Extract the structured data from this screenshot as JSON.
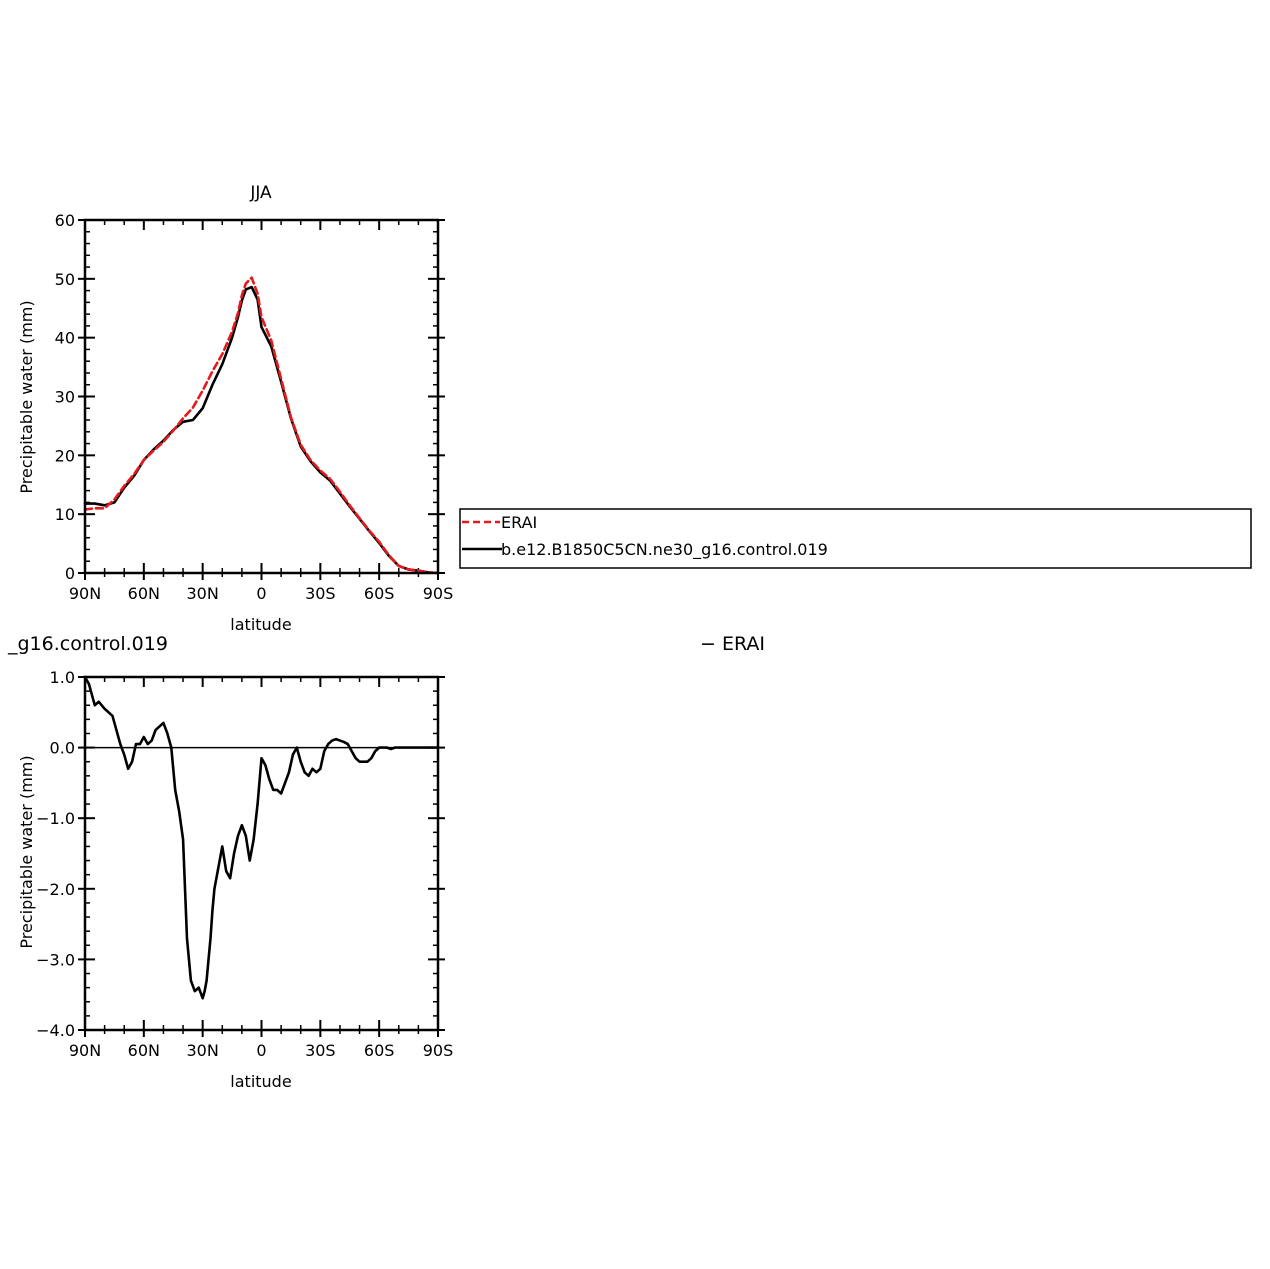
{
  "chart_data": [
    {
      "type": "line",
      "title": "JJA",
      "xlabel": "latitude",
      "ylabel": "Precipitable water (mm)",
      "xlim": [
        90,
        -90
      ],
      "ylim": [
        0,
        60
      ],
      "x_ticks": [
        90,
        60,
        30,
        0,
        -30,
        -60,
        -90
      ],
      "x_tick_labels": [
        "90N",
        "60N",
        "30N",
        "0",
        "30S",
        "60S",
        "90S"
      ],
      "y_ticks": [
        0,
        10,
        20,
        30,
        40,
        50,
        60
      ],
      "y_tick_labels": [
        "0",
        "10",
        "20",
        "30",
        "40",
        "50",
        "60"
      ],
      "legend": {
        "placement": "right",
        "entries": [
          {
            "label": "ERAI",
            "color": "#e41a1c",
            "style": "dashed"
          },
          {
            "label": "b.e12.B1850C5CN.ne30_g16.control.019",
            "color": "#000000",
            "style": "solid"
          }
        ]
      },
      "series": [
        {
          "name": "ERAI",
          "color": "#e41a1c",
          "style": "dashed",
          "x": [
            90,
            85,
            80,
            75,
            70,
            65,
            60,
            55,
            50,
            45,
            40,
            35,
            30,
            25,
            20,
            15,
            12,
            10,
            8,
            5,
            2,
            0,
            -5,
            -10,
            -15,
            -20,
            -25,
            -30,
            -35,
            -40,
            -45,
            -50,
            -55,
            -60,
            -65,
            -70,
            -75,
            -80,
            -85,
            -90
          ],
          "y": [
            10.8,
            11.0,
            11.0,
            12.5,
            14.8,
            16.8,
            19.2,
            20.8,
            22.3,
            24.2,
            26.3,
            28.1,
            31.0,
            34.3,
            37.2,
            41.0,
            44.2,
            47.2,
            49.2,
            50.2,
            47.5,
            43.5,
            39.5,
            33.0,
            26.5,
            21.8,
            19.2,
            17.4,
            16.0,
            13.8,
            11.5,
            9.3,
            7.2,
            5.3,
            3.0,
            1.2,
            0.6,
            0.4,
            0.1,
            0.0
          ]
        },
        {
          "name": "b.e12.B1850C5CN.ne30_g16.control.019",
          "color": "#000000",
          "style": "solid",
          "x": [
            90,
            85,
            80,
            75,
            70,
            65,
            60,
            55,
            50,
            45,
            40,
            35,
            30,
            25,
            20,
            15,
            12,
            10,
            8,
            5,
            2,
            0,
            -5,
            -10,
            -15,
            -20,
            -25,
            -30,
            -35,
            -40,
            -45,
            -50,
            -55,
            -60,
            -65,
            -70,
            -75,
            -80,
            -85,
            -90
          ],
          "y": [
            11.8,
            11.8,
            11.5,
            12.0,
            14.5,
            16.5,
            19.2,
            21.0,
            22.5,
            24.3,
            25.7,
            26.0,
            28.0,
            32.0,
            35.5,
            40.0,
            43.5,
            46.3,
            48.2,
            48.6,
            46.5,
            41.8,
            38.5,
            32.5,
            26.3,
            21.5,
            19.0,
            17.1,
            15.7,
            13.5,
            11.3,
            9.2,
            7.1,
            5.1,
            2.9,
            1.2,
            0.6,
            0.4,
            0.1,
            0.0
          ]
        }
      ]
    },
    {
      "type": "line",
      "title": "_g16.control.019          −  ERAI",
      "title_left": "_g16.control.019",
      "title_right": "−  ERAI",
      "xlabel": "latitude",
      "ylabel": "Precipitable water (mm)",
      "xlim": [
        90,
        -90
      ],
      "ylim": [
        -4,
        1
      ],
      "x_ticks": [
        90,
        60,
        30,
        0,
        -30,
        -60,
        -90
      ],
      "x_tick_labels": [
        "90N",
        "60N",
        "30N",
        "0",
        "30S",
        "60S",
        "90S"
      ],
      "y_ticks": [
        -4,
        -3,
        -2,
        -1,
        0,
        1
      ],
      "y_tick_labels": [
        "−4.0",
        "−3.0",
        "−2.0",
        "−1.0",
        "0.0",
        "1.0"
      ],
      "series": [
        {
          "color": "#000000",
          "style": "solid",
          "x": [
            90,
            88,
            85,
            83,
            80,
            78,
            76,
            74,
            72,
            70,
            68,
            66,
            64,
            62,
            60,
            58,
            56,
            54,
            52,
            50,
            48,
            46,
            44,
            42,
            40,
            38,
            36,
            34,
            32,
            30,
            29,
            28,
            27,
            26,
            25,
            24,
            22,
            20,
            18,
            16,
            14,
            12,
            10,
            8,
            6,
            4,
            2,
            0,
            -2,
            -4,
            -6,
            -8,
            -10,
            -12,
            -14,
            -16,
            -18,
            -20,
            -22,
            -24,
            -26,
            -28,
            -30,
            -32,
            -34,
            -36,
            -38,
            -40,
            -42,
            -44,
            -46,
            -48,
            -50,
            -52,
            -54,
            -56,
            -58,
            -60,
            -62,
            -64,
            -66,
            -68,
            -70,
            -72,
            -74,
            -76,
            -78,
            -80,
            -82,
            -84,
            -86,
            -88,
            -90
          ],
          "y": [
            1.0,
            0.9,
            0.6,
            0.65,
            0.55,
            0.5,
            0.45,
            0.25,
            0.05,
            -0.1,
            -0.3,
            -0.2,
            0.05,
            0.05,
            0.15,
            0.05,
            0.1,
            0.25,
            0.3,
            0.35,
            0.2,
            0.0,
            -0.6,
            -0.9,
            -1.3,
            -2.7,
            -3.3,
            -3.45,
            -3.4,
            -3.55,
            -3.45,
            -3.3,
            -3.0,
            -2.7,
            -2.3,
            -2.0,
            -1.7,
            -1.4,
            -1.75,
            -1.85,
            -1.5,
            -1.25,
            -1.1,
            -1.25,
            -1.6,
            -1.3,
            -0.8,
            -0.15,
            -0.25,
            -0.45,
            -0.6,
            -0.6,
            -0.65,
            -0.5,
            -0.35,
            -0.1,
            0.0,
            -0.2,
            -0.35,
            -0.4,
            -0.3,
            -0.35,
            -0.3,
            -0.05,
            0.05,
            0.1,
            0.12,
            0.1,
            0.08,
            0.05,
            -0.05,
            -0.15,
            -0.2,
            -0.2,
            -0.2,
            -0.15,
            -0.05,
            0.0,
            0.0,
            0.0,
            -0.02,
            0.0,
            0.0,
            0.0,
            0.0,
            0.0,
            0.0,
            0.0,
            0.0,
            0.0,
            0.0,
            0.0,
            0.0
          ]
        }
      ]
    }
  ]
}
